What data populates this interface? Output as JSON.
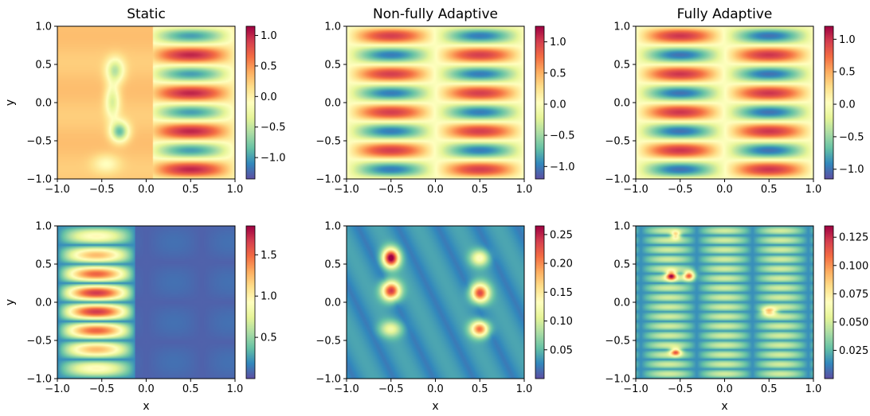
{
  "figure": {
    "column_titles": [
      "Static",
      "Non-fully Adaptive",
      "Fully Adaptive"
    ],
    "xlabel": "x",
    "ylabel": "y"
  },
  "chart_data": [
    {
      "type": "heatmap",
      "row": 0,
      "col": 0,
      "title": "Static",
      "xlabel": "",
      "ylabel": "y",
      "xlim": [
        -1,
        1
      ],
      "ylim": [
        -1,
        1
      ],
      "xticks": [
        "−1.0",
        "−0.5",
        "0.0",
        "0.5",
        "1.0"
      ],
      "yticks": [
        "1.0",
        "0.5",
        "0.0",
        "−0.5",
        "−1.0"
      ],
      "colormap": "Spectral_r",
      "colorbar": {
        "min": -1.35,
        "max": 1.15,
        "ticks": [
          1.0,
          0.5,
          0.0,
          -0.5,
          -1.0
        ],
        "labels": [
          "1.0",
          "0.5",
          "0.0",
          "−0.5",
          "−1.0"
        ]
      },
      "field": "static"
    },
    {
      "type": "heatmap",
      "row": 0,
      "col": 1,
      "title": "Non-fully Adaptive",
      "xlabel": "",
      "ylabel": "",
      "xlim": [
        -1,
        1
      ],
      "ylim": [
        -1,
        1
      ],
      "xticks": [
        "−1.0",
        "−0.5",
        "0.0",
        "0.5",
        "1.0"
      ],
      "yticks": [
        "1.0",
        "0.5",
        "0.0",
        "−0.5",
        "−1.0"
      ],
      "colormap": "Spectral_r",
      "colorbar": {
        "min": -1.2,
        "max": 1.25,
        "ticks": [
          1.0,
          0.5,
          0.0,
          -0.5,
          -1.0
        ],
        "labels": [
          "1.0",
          "0.5",
          "0.0",
          "−0.5",
          "−1.0"
        ]
      },
      "field": "solution"
    },
    {
      "type": "heatmap",
      "row": 0,
      "col": 2,
      "title": "Fully Adaptive",
      "xlabel": "",
      "ylabel": "",
      "xlim": [
        -1,
        1
      ],
      "ylim": [
        -1,
        1
      ],
      "xticks": [
        "−1.0",
        "−0.5",
        "0.0",
        "0.5",
        "1.0"
      ],
      "yticks": [
        "1.0",
        "0.5",
        "0.0",
        "−0.5",
        "−1.0"
      ],
      "colormap": "Spectral_r",
      "colorbar": {
        "min": -1.15,
        "max": 1.2,
        "ticks": [
          1.0,
          0.5,
          0.0,
          -0.5,
          -1.0
        ],
        "labels": [
          "1.0",
          "0.5",
          "0.0",
          "−0.5",
          "−1.0"
        ]
      },
      "field": "solution"
    },
    {
      "type": "heatmap",
      "row": 1,
      "col": 0,
      "title": "",
      "xlabel": "x",
      "ylabel": "y",
      "xlim": [
        -1,
        1
      ],
      "ylim": [
        -1,
        1
      ],
      "xticks": [
        "−1.0",
        "−0.5",
        "0.0",
        "0.5",
        "1.0"
      ],
      "yticks": [
        "1.0",
        "0.5",
        "0.0",
        "−0.5",
        "−1.0"
      ],
      "colormap": "Spectral_r",
      "colorbar": {
        "min": 0.0,
        "max": 1.85,
        "ticks": [
          1.5,
          1.0,
          0.5
        ],
        "labels": [
          "1.5",
          "1.0",
          "0.5"
        ]
      },
      "field": "error_static"
    },
    {
      "type": "heatmap",
      "row": 1,
      "col": 1,
      "title": "",
      "xlabel": "x",
      "ylabel": "",
      "xlim": [
        -1,
        1
      ],
      "ylim": [
        -1,
        1
      ],
      "xticks": [
        "−1.0",
        "−0.5",
        "0.0",
        "0.5",
        "1.0"
      ],
      "yticks": [
        "1.0",
        "0.5",
        "0.0",
        "−0.5",
        "−1.0"
      ],
      "colormap": "Spectral_r",
      "colorbar": {
        "min": 0.0,
        "max": 0.265,
        "ticks": [
          0.25,
          0.2,
          0.15,
          0.1,
          0.05
        ],
        "labels": [
          "0.25",
          "0.20",
          "0.15",
          "0.10",
          "0.05"
        ]
      },
      "field": "error_nonfully"
    },
    {
      "type": "heatmap",
      "row": 1,
      "col": 2,
      "title": "",
      "xlabel": "x",
      "ylabel": "",
      "xlim": [
        -1,
        1
      ],
      "ylim": [
        -1,
        1
      ],
      "xticks": [
        "−1.0",
        "−0.5",
        "0.0",
        "0.5",
        "1.0"
      ],
      "yticks": [
        "1.0",
        "0.5",
        "0.0",
        "−0.5",
        "−1.0"
      ],
      "colormap": "Spectral_r",
      "colorbar": {
        "min": 0.0,
        "max": 0.135,
        "ticks": [
          0.125,
          0.1,
          0.075,
          0.05,
          0.025
        ],
        "labels": [
          "0.125",
          "0.100",
          "0.075",
          "0.050",
          "0.025"
        ]
      },
      "field": "error_fully"
    }
  ]
}
